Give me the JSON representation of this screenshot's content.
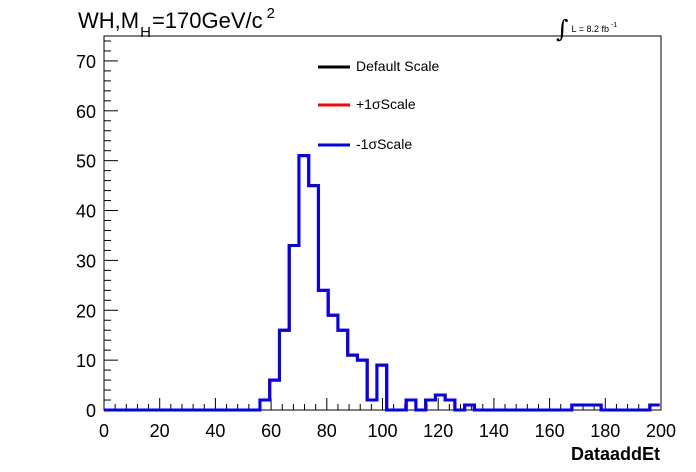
{
  "title": {
    "main": "WH,M",
    "sub": "H",
    "rest": "=170GeV/c",
    "sup": "2"
  },
  "lumi": {
    "integral": "∫",
    "text": "L = 8.2 fb",
    "sup": "-1"
  },
  "legend": [
    {
      "label": "Default Scale",
      "color": "#000000"
    },
    {
      "label": "+1σScale",
      "color": "#ff0000"
    },
    {
      "label": "-1σScale",
      "color": "#0000ff"
    }
  ],
  "chart_data": {
    "type": "line",
    "drawstyle": "histogram-step",
    "xlabel": "DataaddEt",
    "ylabel": "",
    "xlim": [
      0,
      200
    ],
    "ylim": [
      0,
      75
    ],
    "xticks": [
      0,
      20,
      40,
      60,
      80,
      100,
      120,
      140,
      160,
      180,
      200
    ],
    "yticks": [
      0,
      10,
      20,
      30,
      40,
      50,
      60,
      70
    ],
    "bin_width": 3.5,
    "bin_edges_start": 0,
    "series": [
      {
        "name": "Default Scale",
        "color": "#000000",
        "values": [
          0,
          0,
          0,
          0,
          0,
          0,
          0,
          0,
          0,
          0,
          0,
          0,
          0,
          0,
          0,
          0,
          2,
          6,
          16,
          33,
          51,
          45,
          24,
          19,
          16,
          11,
          10,
          2,
          9,
          0,
          0,
          2,
          0,
          2,
          3,
          2,
          0,
          1,
          0,
          0,
          0,
          0,
          0,
          0,
          0,
          0,
          0,
          0,
          1,
          1,
          1,
          0,
          0,
          0,
          0,
          0,
          1
        ]
      },
      {
        "name": "+1σScale",
        "color": "#ff0000",
        "values": [
          0,
          0,
          0,
          0,
          0,
          0,
          0,
          0,
          0,
          0,
          0,
          0,
          0,
          0,
          0,
          0,
          2,
          6,
          16,
          33,
          51,
          45,
          24,
          19,
          16,
          11,
          10,
          2,
          9,
          0,
          0,
          2,
          0,
          2,
          3,
          2,
          0,
          1,
          0,
          0,
          0,
          0,
          0,
          0,
          0,
          0,
          0,
          0,
          1,
          1,
          1,
          0,
          0,
          0,
          0,
          0,
          1
        ]
      },
      {
        "name": "-1σScale",
        "color": "#0000ff",
        "values": [
          0,
          0,
          0,
          0,
          0,
          0,
          0,
          0,
          0,
          0,
          0,
          0,
          0,
          0,
          0,
          0,
          2,
          6,
          16,
          33,
          51,
          45,
          24,
          19,
          16,
          11,
          10,
          2,
          9,
          0,
          0,
          2,
          0,
          2,
          3,
          2,
          0,
          1,
          0,
          0,
          0,
          0,
          0,
          0,
          0,
          0,
          0,
          0,
          1,
          1,
          1,
          0,
          0,
          0,
          0,
          0,
          1
        ]
      }
    ]
  }
}
